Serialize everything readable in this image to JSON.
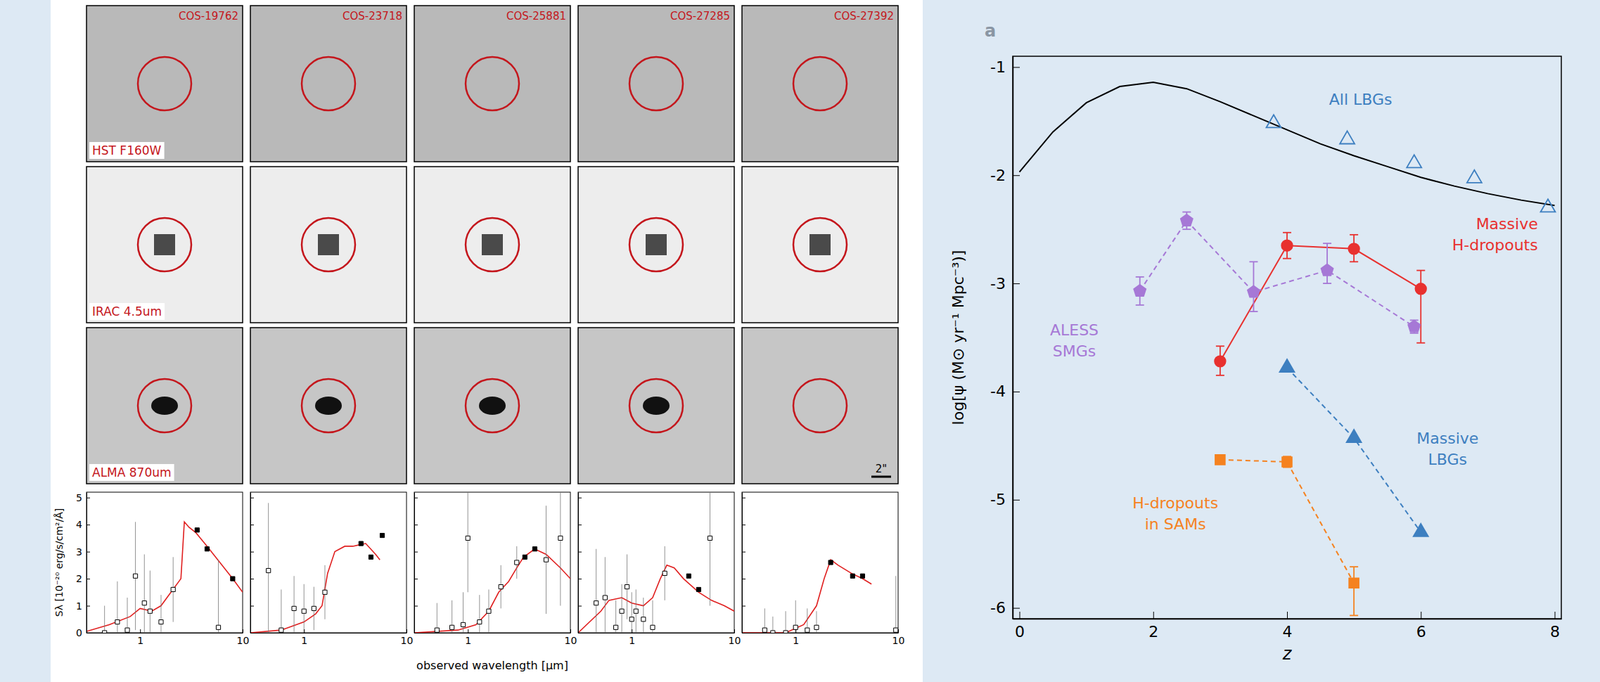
{
  "cutouts": {
    "sources": [
      "COS-19762",
      "COS-23718",
      "COS-25881",
      "COS-27285",
      "COS-27392"
    ],
    "bands": [
      "HST F160W",
      "IRAC 4.5um",
      "ALMA 870um"
    ],
    "alma_detected": [
      true,
      true,
      true,
      true,
      false
    ],
    "scale_bar": "2\""
  },
  "chart_data": [
    {
      "type": "scatter",
      "log": "x",
      "y_label": "Sλ [10⁻²⁰ erg/s/cm²/Å]",
      "xlim": [
        0.3,
        10
      ],
      "xticks": [
        1,
        10
      ],
      "ylim": [
        0,
        5.2
      ],
      "yticks": [
        0,
        1,
        2,
        3,
        4,
        5
      ],
      "series": [
        {
          "type": "line",
          "color": "#e02020",
          "line_style": "solid",
          "x": [
            0.3,
            0.5,
            0.8,
            1.0,
            1.3,
            1.6,
            2.0,
            2.5,
            2.7,
            3.0,
            3.5,
            4.5,
            6.0,
            8.0,
            10.0
          ],
          "values": [
            0.05,
            0.3,
            0.6,
            0.9,
            0.8,
            1.0,
            1.5,
            2.0,
            4.1,
            3.9,
            3.7,
            3.2,
            2.6,
            2.0,
            1.5
          ]
        },
        {
          "type": "scatter",
          "color": "#000000",
          "marker": "square-filled",
          "x": [
            3.6,
            4.5,
            8.0
          ],
          "values": [
            3.8,
            3.1,
            2.0
          ]
        },
        {
          "type": "scatter",
          "color": "#000000",
          "marker": "square-open",
          "x": [
            0.45,
            0.6,
            0.75,
            0.9,
            1.1,
            1.25,
            1.6,
            2.1,
            5.8
          ],
          "values": [
            0.0,
            0.4,
            0.1,
            2.1,
            1.1,
            0.8,
            0.4,
            1.6,
            0.2
          ],
          "errors": [
            1.0,
            1.5,
            1.2,
            2.0,
            1.8,
            1.5,
            1.0,
            1.2,
            2.5
          ]
        }
      ]
    },
    {
      "type": "scatter",
      "log": "x",
      "tick_labels": "x",
      "xlim": [
        0.3,
        10
      ],
      "xticks": [
        1,
        10
      ],
      "ylim": [
        0,
        5.2
      ],
      "yticks": [
        0,
        1,
        2,
        3,
        4,
        5
      ],
      "series": [
        {
          "type": "line",
          "color": "#e02020",
          "line_style": "solid",
          "x": [
            0.3,
            0.6,
            1.0,
            1.3,
            1.5,
            1.7,
            2.0,
            2.5,
            3.0,
            4.0,
            5.0,
            5.5
          ],
          "values": [
            0.0,
            0.1,
            0.4,
            0.7,
            1.0,
            2.2,
            3.0,
            3.2,
            3.2,
            3.3,
            2.9,
            2.7
          ]
        },
        {
          "type": "scatter",
          "color": "#000000",
          "marker": "square-filled",
          "x": [
            3.6,
            4.5,
            5.8
          ],
          "values": [
            3.3,
            2.8,
            3.6
          ]
        },
        {
          "type": "scatter",
          "color": "#000000",
          "marker": "square-open",
          "x": [
            0.45,
            0.6,
            0.8,
            1.0,
            1.25,
            1.6
          ],
          "values": [
            2.3,
            0.1,
            0.9,
            0.8,
            0.9,
            1.5
          ],
          "errors": [
            2.5,
            1.5,
            1.2,
            1.0,
            0.8,
            1.0
          ]
        }
      ]
    },
    {
      "type": "scatter",
      "log": "x",
      "tick_labels": "x",
      "x_label": "observed wavelength [μm]",
      "xlim": [
        0.3,
        10
      ],
      "xticks": [
        1,
        10
      ],
      "ylim": [
        0,
        5.2
      ],
      "yticks": [
        0,
        1,
        2,
        3,
        4,
        5
      ],
      "series": [
        {
          "type": "line",
          "color": "#e02020",
          "line_style": "solid",
          "x": [
            0.3,
            0.8,
            1.2,
            1.6,
            2.0,
            2.5,
            3.0,
            3.5,
            4.5,
            5.8,
            8.0,
            10.0
          ],
          "values": [
            0.0,
            0.1,
            0.3,
            0.8,
            1.5,
            1.9,
            2.4,
            2.8,
            3.1,
            2.9,
            2.4,
            2.0
          ]
        },
        {
          "type": "scatter",
          "color": "#000000",
          "marker": "square-filled",
          "x": [
            3.6,
            4.5
          ],
          "values": [
            2.8,
            3.1
          ]
        },
        {
          "type": "scatter",
          "color": "#000000",
          "marker": "square-open",
          "x": [
            0.5,
            0.7,
            0.9,
            1.0,
            1.3,
            1.6,
            2.1,
            3.0,
            5.8,
            8.0
          ],
          "values": [
            0.1,
            0.2,
            0.3,
            3.5,
            0.4,
            0.8,
            1.7,
            2.6,
            2.7,
            3.5
          ],
          "errors": [
            1.0,
            1.0,
            1.2,
            2.0,
            1.0,
            0.8,
            0.8,
            0.6,
            2.0,
            2.5
          ]
        }
      ]
    },
    {
      "type": "scatter",
      "log": "x",
      "tick_labels": "x",
      "xlim": [
        0.3,
        10
      ],
      "xticks": [
        1,
        10
      ],
      "ylim": [
        0,
        5.2
      ],
      "yticks": [
        0,
        1,
        2,
        3,
        4,
        5
      ],
      "series": [
        {
          "type": "line",
          "color": "#e02020",
          "line_style": "solid",
          "x": [
            0.3,
            0.5,
            0.6,
            0.8,
            1.0,
            1.3,
            1.6,
            1.9,
            2.2,
            2.6,
            3.2,
            4.5,
            6.0,
            8.0,
            10.0
          ],
          "values": [
            0.0,
            0.8,
            1.2,
            1.3,
            1.1,
            1.0,
            1.3,
            2.0,
            2.5,
            2.4,
            2.0,
            1.5,
            1.2,
            1.0,
            0.8
          ]
        },
        {
          "type": "scatter",
          "color": "#000000",
          "marker": "square-filled",
          "x": [
            3.6,
            4.5
          ],
          "values": [
            2.1,
            1.6
          ]
        },
        {
          "type": "scatter",
          "color": "#000000",
          "marker": "square-open",
          "x": [
            0.45,
            0.55,
            0.7,
            0.8,
            0.9,
            1.0,
            1.1,
            1.3,
            1.6,
            2.1,
            5.8
          ],
          "values": [
            1.1,
            1.3,
            0.2,
            0.8,
            1.7,
            0.5,
            0.8,
            0.5,
            0.2,
            2.2,
            3.5
          ],
          "errors": [
            2.0,
            1.5,
            1.0,
            1.0,
            1.2,
            1.0,
            0.8,
            0.8,
            1.0,
            1.0,
            2.5
          ]
        }
      ]
    },
    {
      "type": "scatter",
      "log": "x",
      "tick_labels": "x",
      "xlim": [
        0.3,
        10
      ],
      "xticks": [
        1,
        10
      ],
      "ylim": [
        0,
        5.2
      ],
      "yticks": [
        0,
        1,
        2,
        3,
        4,
        5
      ],
      "series": [
        {
          "type": "line",
          "color": "#e02020",
          "line_style": "solid",
          "x": [
            0.3,
            0.8,
            1.2,
            1.6,
            1.9,
            2.2,
            2.6,
            3.5,
            4.5,
            5.5
          ],
          "values": [
            0.0,
            0.0,
            0.3,
            1.0,
            2.0,
            2.7,
            2.5,
            2.2,
            2.0,
            1.8
          ]
        },
        {
          "type": "scatter",
          "color": "#000000",
          "marker": "square-filled",
          "x": [
            2.2,
            3.6,
            4.5
          ],
          "values": [
            2.6,
            2.1,
            2.1
          ]
        },
        {
          "type": "scatter",
          "color": "#000000",
          "marker": "square-open",
          "x": [
            0.5,
            0.6,
            0.8,
            1.0,
            1.3,
            1.6,
            9.5
          ],
          "values": [
            0.1,
            0.0,
            0.0,
            0.2,
            0.1,
            0.2,
            0.1
          ],
          "errors": [
            0.8,
            0.6,
            0.8,
            1.0,
            0.8,
            0.6,
            2.0
          ]
        }
      ]
    },
    {
      "type": "line",
      "panel_label": "a",
      "x_label": "z",
      "y_label": "log[ψ (M⊙ yr⁻¹ Mpc⁻³)]",
      "xlim": [
        -0.1,
        8.1
      ],
      "xticks": [
        0,
        2,
        4,
        6,
        8
      ],
      "ylim": [
        -6.1,
        -0.9
      ],
      "yticks": [
        -6,
        -5,
        -4,
        -3,
        -2,
        -1
      ],
      "series": [
        {
          "type": "line",
          "color": "#000000",
          "line_style": "solid",
          "x": [
            0,
            0.5,
            1,
            1.5,
            2,
            2.5,
            3,
            3.5,
            4,
            4.5,
            5,
            5.5,
            6,
            6.5,
            7,
            7.5,
            8
          ],
          "values": [
            -1.97,
            -1.6,
            -1.33,
            -1.18,
            -1.14,
            -1.2,
            -1.32,
            -1.45,
            -1.58,
            -1.71,
            -1.82,
            -1.92,
            -2.02,
            -2.1,
            -2.17,
            -2.23,
            -2.28
          ]
        },
        {
          "name": "All LBGs",
          "type": "scatter",
          "color": "#3d7fc0",
          "marker": "triangle-open",
          "x": [
            3.8,
            4.9,
            5.9,
            6.8,
            7.9
          ],
          "values": [
            -1.52,
            -1.67,
            -1.89,
            -2.03,
            -2.3
          ]
        },
        {
          "name": "Massive H-dropouts",
          "type": "line",
          "color": "#e8312f",
          "marker": "circle",
          "line_style": "solid",
          "x": [
            3,
            4,
            5,
            6
          ],
          "values": [
            -3.72,
            -2.65,
            -2.68,
            -3.05
          ],
          "error_low": [
            0.13,
            0.12,
            0.12,
            0.5
          ],
          "error_high": [
            0.14,
            0.12,
            0.13,
            0.17
          ]
        },
        {
          "name": "ALESS SMGs",
          "type": "line",
          "color": "#a678d6",
          "marker": "pentagon",
          "line_style": "dashed",
          "x": [
            1.8,
            2.5,
            3.5,
            4.6,
            5.9
          ],
          "values": [
            -3.07,
            -2.42,
            -3.08,
            -2.88,
            -3.4
          ],
          "error_low": [
            0.13,
            0.08,
            0.18,
            0.12,
            0.06
          ],
          "error_high": [
            0.13,
            0.08,
            0.28,
            0.25,
            0.06
          ]
        },
        {
          "name": "Massive LBGs",
          "type": "line",
          "color": "#3d7fc0",
          "marker": "triangle",
          "line_style": "dashed",
          "x": [
            4,
            5,
            6
          ],
          "values": [
            -3.78,
            -4.43,
            -5.3
          ]
        },
        {
          "name": "H-dropouts in SAMs",
          "type": "line",
          "color": "#f5821f",
          "marker": "square",
          "line_style": "dashed",
          "x": [
            3,
            4,
            5
          ],
          "values": [
            -4.63,
            -4.65,
            -5.77
          ],
          "error_low": [
            0.04,
            0.05,
            0.3
          ],
          "error_high": [
            0.04,
            0.05,
            0.15
          ]
        }
      ]
    }
  ]
}
